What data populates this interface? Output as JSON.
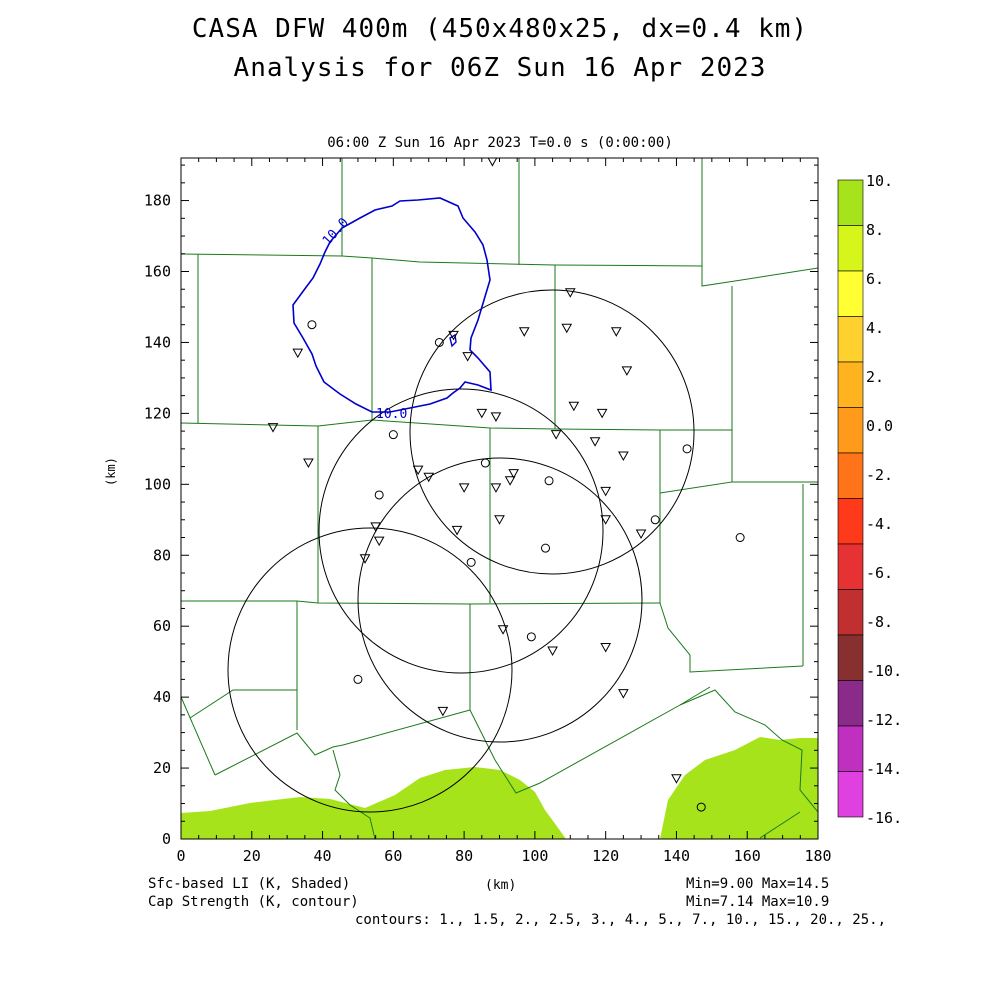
{
  "title": {
    "line1": "CASA DFW 400m (450x480x25, dx=0.4 km)",
    "line2": "Analysis for 06Z Sun 16 Apr 2023"
  },
  "subtitle": "06:00 Z Sun 16 Apr 2023   T=0.0 s (0:00:00)",
  "axes": {
    "xlabel": "(km)",
    "ylabel": "(km)",
    "x_ticks": [
      "0",
      "20",
      "40",
      "60",
      "80",
      "100",
      "120",
      "140",
      "160",
      "180"
    ],
    "y_ticks": [
      "0",
      "20",
      "40",
      "60",
      "80",
      "100",
      "120",
      "140",
      "160",
      "180"
    ],
    "xlim": [
      0,
      180
    ],
    "ylim": [
      0,
      192
    ]
  },
  "colorbar": {
    "labels": [
      "10.",
      "8.",
      "6.",
      "4.",
      "2.",
      "0.0",
      "-2.",
      "-4.",
      "-6.",
      "-8.",
      "-10.",
      "-12.",
      "-14.",
      "-16."
    ],
    "colors": [
      "#a6e31a",
      "#d6f51a",
      "#ffff33",
      "#ffd12e",
      "#ffb31f",
      "#ff9a1a",
      "#ff7319",
      "#ff3a1a",
      "#e63232",
      "#c03030",
      "#883030",
      "#8a2b8a",
      "#c030c0",
      "#e040e0"
    ]
  },
  "contour_labels": [
    "10.0",
    "10.0"
  ],
  "footer": {
    "left1": "Sfc-based LI (K, Shaded)",
    "left2": "Cap Strength (K, contour)",
    "center": "(km)",
    "right1": "Min=9.00 Max=14.5",
    "right2": "Min=7.14 Max=10.9",
    "contours": "contours: 1., 1.5, 2., 2.5, 3., 4., 5., 7., 10., 15., 20., 25.,"
  },
  "colors": {
    "shading": "#a6e31a",
    "contour": "#0000cc",
    "counties": "#1a7a1a",
    "radar_rings": "#000000"
  },
  "stations": {
    "triangles": [
      [
        88,
        191
      ],
      [
        110,
        154
      ],
      [
        97,
        143
      ],
      [
        109,
        144
      ],
      [
        123,
        143
      ],
      [
        77,
        142
      ],
      [
        81,
        136
      ],
      [
        33,
        137
      ],
      [
        126,
        132
      ],
      [
        111,
        122
      ],
      [
        119,
        120
      ],
      [
        85,
        120
      ],
      [
        89,
        119
      ],
      [
        26,
        116
      ],
      [
        106,
        114
      ],
      [
        117,
        112
      ],
      [
        125,
        108
      ],
      [
        36,
        106
      ],
      [
        67,
        104
      ],
      [
        70,
        102
      ],
      [
        94,
        103
      ],
      [
        89,
        99
      ],
      [
        80,
        99
      ],
      [
        93,
        101
      ],
      [
        120,
        98
      ],
      [
        120,
        90
      ],
      [
        90,
        90
      ],
      [
        78,
        87
      ],
      [
        55,
        88
      ],
      [
        56,
        84
      ],
      [
        130,
        86
      ],
      [
        52,
        79
      ],
      [
        91,
        59
      ],
      [
        105,
        53
      ],
      [
        120,
        54
      ],
      [
        125,
        41
      ],
      [
        74,
        36
      ],
      [
        140,
        17
      ]
    ],
    "circles": [
      [
        37,
        145
      ],
      [
        73,
        140
      ],
      [
        60,
        114
      ],
      [
        86,
        106
      ],
      [
        56,
        97
      ],
      [
        104,
        101
      ],
      [
        134,
        90
      ],
      [
        143,
        110
      ],
      [
        158,
        85
      ],
      [
        103,
        82
      ],
      [
        82,
        78
      ],
      [
        99,
        57
      ],
      [
        50,
        45
      ],
      [
        147,
        9
      ]
    ]
  }
}
